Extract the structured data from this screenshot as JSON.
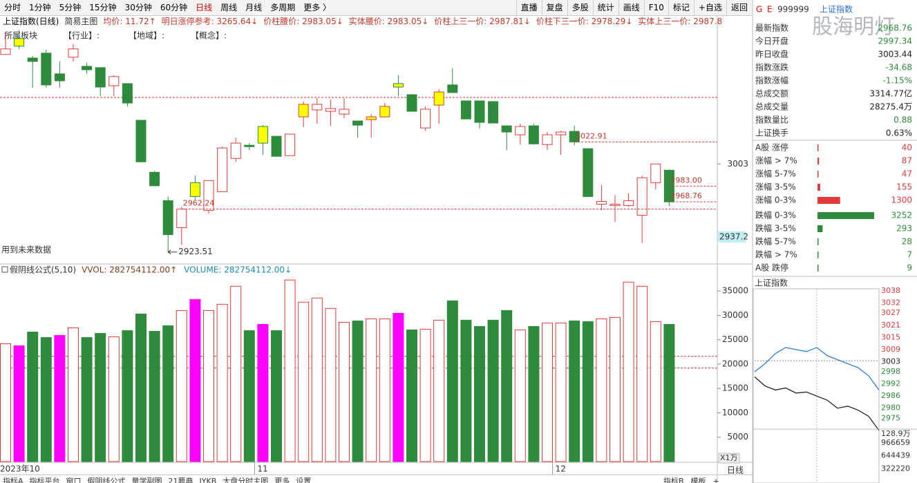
{
  "toolbar": {
    "left": [
      {
        "label": "分时"
      },
      {
        "label": "1分钟"
      },
      {
        "label": "5分钟"
      },
      {
        "label": "15分钟"
      },
      {
        "label": "30分钟"
      },
      {
        "label": "60分钟"
      },
      {
        "label": "日线",
        "active": true
      },
      {
        "label": "周线"
      },
      {
        "label": "月线"
      },
      {
        "label": "多周期"
      },
      {
        "label": "更多 〉"
      }
    ],
    "right": [
      "直播",
      "复盘",
      "多股",
      "统计",
      "画线",
      "F10",
      "标记",
      "+自选",
      "返回"
    ]
  },
  "header": {
    "title": "上证指数(日线)",
    "mode": "简易主图",
    "indicators": [
      "均价: 11.72↑",
      "明日涨停参考: 3265.64↓",
      "价柱腰价: 2983.05↓",
      "实体腰价: 2983.05↓",
      "价柱上三一价: 2987.81↓",
      "价柱下三一价: 2978.29↓",
      "实体上三一价: 2987.8"
    ]
  },
  "sector_line": [
    "所属板块",
    "【行业】:",
    "【地域】:",
    "【概念】:"
  ],
  "chart_data": [
    {
      "type": "candlestick",
      "categories": [
        "2023年10",
        null,
        null,
        null,
        null,
        null,
        null,
        null,
        null,
        null,
        null,
        null,
        null,
        null,
        null,
        null,
        null,
        null,
        null,
        "11",
        null,
        null,
        null,
        null,
        null,
        null,
        null,
        null,
        null,
        null,
        null,
        null,
        null,
        null,
        null,
        null,
        null,
        null,
        null,
        null,
        null,
        "12",
        null,
        null,
        null,
        null,
        null,
        null,
        null,
        null
      ],
      "open": [
        3101.8,
        3116.1,
        3098.6,
        3103,
        3084.3,
        3099.3,
        3091.1,
        3089.9,
        3073.6,
        3075.5,
        3042.4,
        2995.5,
        2969.9,
        2945.5,
        2986.1,
        2961.1,
        2978,
        3008,
        3019.9,
        3036.8,
        3028,
        3010.5,
        3045.5,
        3051.8,
        3050.5,
        3048,
        3041.8,
        3043,
        3045.5,
        3075.5,
        3065.5,
        3035.5,
        3056.1,
        3074.3,
        3059.9,
        3059.9,
        3059.3,
        3037.4,
        3029.3,
        3037.4,
        3020.5,
        3029.3,
        3032.4,
        3016.8,
        2966.7,
        2965.5,
        2965.5,
        2956.7,
        2986.1,
        2997.34
      ],
      "high": [
        3120.5,
        3123.6,
        3100.5,
        3106.1,
        3095.5,
        3111.1,
        3094.3,
        3089.9,
        3083,
        3075.5,
        3042.4,
        2996.7,
        2973.6,
        2964.2,
        2992.4,
        2988,
        3018.6,
        3026.8,
        3021.8,
        3038,
        3028,
        3029.9,
        3059.3,
        3062.4,
        3061.1,
        3062.4,
        3041.8,
        3048,
        3058,
        3083,
        3065.5,
        3054.9,
        3070.5,
        3089.3,
        3059.9,
        3059.9,
        3059.3,
        3037.4,
        3039.3,
        3039.3,
        3031.8,
        3033,
        3037.4,
        3016.8,
        2984.2,
        2974.9,
        2976.7,
        2992.4,
        3003,
        2998
      ],
      "low": [
        3101.8,
        3106.8,
        3071.8,
        3071.8,
        3071.8,
        3095.5,
        3084.3,
        3064.3,
        3064.3,
        3054.9,
        3004.9,
        2983.3,
        2923.51,
        2929.9,
        2970.5,
        2958,
        2978,
        3004.9,
        3015.5,
        3011.1,
        3009.9,
        3010.5,
        3036.1,
        3039.3,
        3037.4,
        3044.3,
        3026.8,
        3026.8,
        3045.5,
        3064.3,
        3050.5,
        3033,
        3039.3,
        3067.4,
        3043.6,
        3034.9,
        3039.9,
        3015.5,
        3020.5,
        3020.5,
        3015.5,
        3011.1,
        3020,
        2973.6,
        2961.1,
        2950.5,
        2964.2,
        2931.7,
        2979.9,
        2965
      ],
      "close": [
        3106.8,
        3109.3,
        3095.5,
        3074.3,
        3078,
        3106.8,
        3088,
        3072.4,
        3081.8,
        3058,
        3004.9,
        2983.3,
        2939.2,
        2962.24,
        2973.6,
        2988,
        3017.4,
        3021.8,
        3018.6,
        3021.8,
        3009.9,
        3029.9,
        3056.8,
        3056.8,
        3053,
        3052.4,
        3038,
        3045.5,
        3054.9,
        3072.4,
        3050.5,
        3052.4,
        3068,
        3067.4,
        3043.6,
        3040.5,
        3039.9,
        3031.8,
        3036.8,
        3021.1,
        3029.3,
        3031.8,
        3022.91,
        2973.6,
        2969.2,
        2966.7,
        2969.9,
        2990.5,
        3003,
        2968.76
      ],
      "fills": [
        "#ffffff",
        "#ffff00",
        "#2e8b3c",
        "#2e8b3c",
        "#2e8b3c",
        "#ffffff",
        "#2e8b3c",
        "#2e8b3c",
        "#ffffff",
        "#2e8b3c",
        "#2e8b3c",
        "#2e8b3c",
        "#2e8b3c",
        "#ffffff",
        "#ffff00",
        "#ffffff",
        "#ffffff",
        "#ffffff",
        "#2e8b3c",
        "#ffff00",
        "#2e8b3c",
        "#ffffff",
        "#ffff00",
        "#ffffff",
        "#ffffff",
        "#ffffff",
        "#2e8b3c",
        "#ffff00",
        "#ffff00",
        "#ffff00",
        "#2e8b3c",
        "#ffffff",
        "#ffff00",
        "#2e8b3c",
        "#2e8b3c",
        "#2e8b3c",
        "#2e8b3c",
        "#2e8b3c",
        "#ffffff",
        "#2e8b3c",
        "#ffffff",
        "#ffffff",
        "#2e8b3c",
        "#2e8b3c",
        "#ffffff",
        "#ffffff",
        "#ffffff",
        "#ffffff",
        "#ffffff",
        "#2e8b3c"
      ],
      "up_color": "#e03a3a",
      "down_color": "#2e8b3c",
      "ylim": [
        2914,
        3126
      ],
      "yticks": [
        3003
      ],
      "annotations": [
        {
          "text": "3022.91",
          "value": 3022.91
        },
        {
          "text": "2983.00",
          "value": 2983
        },
        {
          "text": "2968.76",
          "value": 2968.76
        },
        {
          "text": "2962.24",
          "value": 2962.24
        },
        {
          "text": "2923.51",
          "value": 2923.51
        }
      ],
      "ref_lines": [
        3063
      ],
      "cursor_label": 2937.2,
      "note": "用到未来数据"
    },
    {
      "type": "bar",
      "title": "假阴线公式(5,10)",
      "readouts": [
        "VVOL: 282754112.00↑",
        "VOLUME: 282754112.00↓"
      ],
      "values": [
        24170,
        23750,
        26590,
        25450,
        25880,
        27440,
        25450,
        26300,
        25600,
        26880,
        30290,
        26730,
        27870,
        31000,
        33270,
        31000,
        32280,
        35980,
        26880,
        28160,
        26880,
        37260,
        32710,
        33560,
        31430,
        28580,
        28870,
        29290,
        29290,
        30430,
        27020,
        27160,
        29010,
        32990,
        29010,
        27730,
        29010,
        31000,
        27020,
        27730,
        28440,
        28440,
        28870,
        28720,
        29290,
        29580,
        36830,
        35980,
        28720,
        28160
      ],
      "fills": [
        "#ffffff",
        "#ff00ff",
        "#2e8b3c",
        "#2e8b3c",
        "#ff00ff",
        "#ffffff",
        "#2e8b3c",
        "#2e8b3c",
        "#ffffff",
        "#2e8b3c",
        "#2e8b3c",
        "#2e8b3c",
        "#2e8b3c",
        "#ffffff",
        "#ff00ff",
        "#ffffff",
        "#ffffff",
        "#ffffff",
        "#2e8b3c",
        "#ff00ff",
        "#2e8b3c",
        "#ffffff",
        "#ffffff",
        "#ffffff",
        "#ffffff",
        "#ffffff",
        "#2e8b3c",
        "#ffffff",
        "#ffffff",
        "#ff00ff",
        "#2e8b3c",
        "#ffffff",
        "#ffffff",
        "#2e8b3c",
        "#2e8b3c",
        "#2e8b3c",
        "#2e8b3c",
        "#2e8b3c",
        "#ffffff",
        "#2e8b3c",
        "#ffffff",
        "#ffffff",
        "#2e8b3c",
        "#2e8b3c",
        "#ffffff",
        "#ffffff",
        "#ffffff",
        "#ffffff",
        "#ffffff",
        "#2e8b3c"
      ],
      "outline_color": "#e03a3a",
      "ylim": [
        0,
        38000
      ],
      "yticks": [
        35000,
        30000,
        25000,
        20000,
        15000,
        10000,
        5000
      ],
      "unit": "X1万",
      "ref_lines": [
        21600,
        19200
      ]
    },
    {
      "type": "line",
      "title": "上证指数",
      "series": [
        {
          "color": "#222222",
          "values": [
            2995.5,
            2991,
            2989,
            2990,
            2987.5,
            2988,
            2986,
            2984,
            2980,
            2981,
            2979,
            2976,
            2969
          ]
        },
        {
          "color": "#2a7fd4",
          "values": [
            2998,
            3002,
            3007,
            3010,
            3009,
            3008,
            3010,
            3006,
            3004,
            3002,
            3000,
            2996,
            2989
          ]
        }
      ],
      "baseline": 3003.44,
      "ylim": [
        2970,
        3038
      ],
      "yticks": [
        3038,
        3032,
        3027,
        3021,
        3015,
        3009,
        3003,
        2998,
        2992,
        2986,
        2980,
        2975
      ],
      "vol_ylim": [
        0,
        1289000
      ],
      "vol_ticks": [
        {
          "value": 1289000,
          "label": "128.9万"
        },
        966659,
        644439,
        322220
      ]
    }
  ],
  "right_panel": {
    "marks": [
      "G",
      "E"
    ],
    "code": "999999",
    "name": "上证指数",
    "watermark": "股海明灯",
    "stats": [
      {
        "label": "最新指数",
        "value": "2968.76",
        "color": "#2e8b3c"
      },
      {
        "label": "今日开盘",
        "value": "2997.34",
        "color": "#2e8b3c"
      },
      {
        "label": "昨日收盘",
        "value": "3003.44",
        "color": "#222222"
      },
      {
        "label": "指数涨跌",
        "value": "-34.68",
        "color": "#2e8b3c"
      },
      {
        "label": "指数涨幅",
        "value": "-1.15%",
        "color": "#2e8b3c"
      },
      {
        "label": "总成交额",
        "value": "3314.77亿",
        "color": "#222222"
      },
      {
        "label": "总成交量",
        "value": "28275.4万",
        "color": "#222222"
      },
      {
        "label": "指数量比",
        "value": "0.88",
        "color": "#2e8b3c"
      },
      {
        "label": "上证换手",
        "value": "0.63%",
        "color": "#222222"
      }
    ],
    "breadth": [
      {
        "label": "A股 涨停",
        "value": 40,
        "color": "#e03a3a"
      },
      {
        "label": "涨幅 > 7%",
        "value": 87,
        "color": "#e03a3a"
      },
      {
        "label": "涨幅 5-7%",
        "value": 47,
        "color": "#e03a3a"
      },
      {
        "label": "涨幅 3-5%",
        "value": 155,
        "color": "#e03a3a"
      },
      {
        "label": "涨幅 0-3%",
        "value": 1300,
        "color": "#e03a3a"
      },
      {
        "label": "跌幅 0-3%",
        "value": 3252,
        "color": "#2e8b3c"
      },
      {
        "label": "跌幅 3-5%",
        "value": 293,
        "color": "#2e8b3c"
      },
      {
        "label": "跌幅 5-7%",
        "value": 28,
        "color": "#2e8b3c"
      },
      {
        "label": "跌幅 > 7%",
        "value": 7,
        "color": "#2e8b3c"
      },
      {
        "label": "A股 跌停",
        "value": 9,
        "color": "#2e8b3c"
      }
    ]
  },
  "bottom": {
    "tabs": [
      "指标A",
      "指标平台",
      "窗口",
      "假阴线公式",
      "量学副图",
      "21要典",
      "JYKB",
      "大盘分时主图",
      "更多",
      "设置"
    ],
    "right_tabs": [
      "指标B",
      "模板",
      "+"
    ],
    "period": "日线"
  }
}
